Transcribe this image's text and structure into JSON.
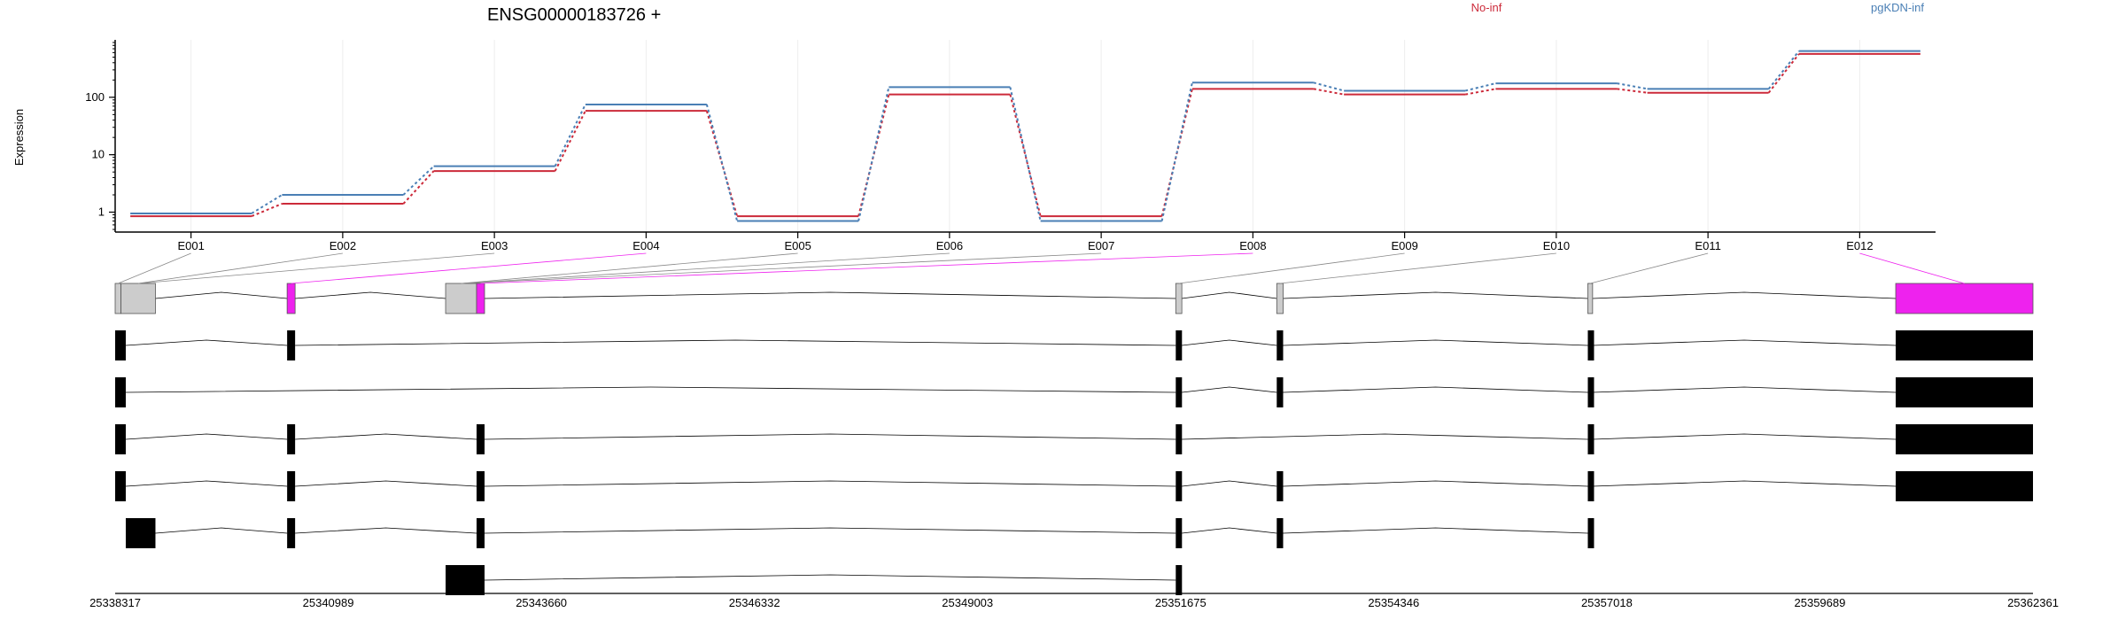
{
  "chart_data": {
    "type": "line",
    "title": "ENSG00000183726 +",
    "ylabel": "Expression",
    "yscale": "log",
    "ylim": [
      0.45,
      1000
    ],
    "y_ticks": [
      1,
      10,
      100
    ],
    "y_tick_labels": [
      "1",
      "10",
      "100"
    ],
    "grid": true,
    "legend_placement": "top",
    "categories": [
      "E001",
      "E002",
      "E003",
      "E004",
      "E005",
      "E006",
      "E007",
      "E008",
      "E009",
      "E010",
      "E011",
      "E012"
    ],
    "series": [
      {
        "name": "No-inf",
        "color": "#cc2a3a",
        "values": [
          0.85,
          1.4,
          5.2,
          58,
          0.85,
          112,
          0.85,
          140,
          112,
          140,
          120,
          570
        ]
      },
      {
        "name": "pgKDN-inf",
        "color": "#4a7fb5",
        "values": [
          0.95,
          2.0,
          6.3,
          75,
          0.7,
          150,
          0.7,
          180,
          130,
          175,
          140,
          640
        ]
      }
    ],
    "gene_model": {
      "coord_min": 25338317,
      "coord_max": 25362361,
      "coordinate_labels": [
        "25338317",
        "25340989",
        "25343660",
        "25346332",
        "25349003",
        "25351675",
        "25354346",
        "25357018",
        "25359689",
        "25362361"
      ],
      "highlight_color": "#ee22ee",
      "exon_color": "#cccccc",
      "exons": [
        {
          "id": "E001",
          "start": 25338317,
          "end": 25338390,
          "highlight": false
        },
        {
          "id": "E002",
          "start": 25338390,
          "end": 25338822,
          "highlight": false
        },
        {
          "id": "E003",
          "start": 25340473,
          "end": 25340573,
          "highlight": true
        },
        {
          "id": "E004",
          "start": 25342460,
          "end": 25342848,
          "highlight": false
        },
        {
          "id": "E005",
          "start": 25342848,
          "end": 25342948,
          "highlight": true
        },
        {
          "id": "E006",
          "start": 25351614,
          "end": 25351690,
          "highlight": false
        },
        {
          "id": "E007",
          "start": 25352880,
          "end": 25352960,
          "highlight": false
        },
        {
          "id": "E008",
          "start": 25356780,
          "end": 25356840,
          "highlight": false
        },
        {
          "id": "E009",
          "start": 25360640,
          "end": 25362361,
          "highlight": true
        }
      ],
      "exon_bin_map": [
        {
          "bin": "E001",
          "exon": "E001"
        },
        {
          "bin": "E002",
          "exon": "E002"
        },
        {
          "bin": "E003",
          "exon": "E002"
        },
        {
          "bin": "E004",
          "exon": "E003"
        },
        {
          "bin": "E005",
          "exon": "E004"
        },
        {
          "bin": "E006",
          "exon": "E004"
        },
        {
          "bin": "E007",
          "exon": "E004"
        },
        {
          "bin": "E008",
          "exon": "E005"
        },
        {
          "bin": "E009",
          "exon": "E006"
        },
        {
          "bin": "E010",
          "exon": "E007"
        },
        {
          "bin": "E011",
          "exon": "E008"
        },
        {
          "bin": "E012",
          "exon": "E009"
        }
      ],
      "transcripts": [
        {
          "exons": [
            [
              25338317,
              25338450
            ],
            [
              25340473,
              25340573
            ],
            [
              25351614,
              25351690
            ],
            [
              25352880,
              25352960
            ],
            [
              25356780,
              25356840
            ],
            [
              25360640,
              25362361
            ]
          ]
        },
        {
          "exons": [
            [
              25338317,
              25338450
            ],
            [
              25351614,
              25351690
            ],
            [
              25352880,
              25352960
            ],
            [
              25356780,
              25356840
            ],
            [
              25360640,
              25362361
            ]
          ]
        },
        {
          "exons": [
            [
              25338317,
              25338450
            ],
            [
              25340473,
              25340573
            ],
            [
              25342848,
              25342948
            ],
            [
              25351614,
              25351690
            ],
            [
              25356780,
              25356840
            ],
            [
              25360640,
              25362361
            ]
          ]
        },
        {
          "exons": [
            [
              25338317,
              25338450
            ],
            [
              25340473,
              25340573
            ],
            [
              25342848,
              25342948
            ],
            [
              25351614,
              25351690
            ],
            [
              25352880,
              25352960
            ],
            [
              25356780,
              25356840
            ],
            [
              25360640,
              25362361
            ]
          ]
        },
        {
          "exons": [
            [
              25338450,
              25338822
            ],
            [
              25340473,
              25340573
            ],
            [
              25342848,
              25342948
            ],
            [
              25351614,
              25351690
            ],
            [
              25352880,
              25352960
            ],
            [
              25356780,
              25356840
            ]
          ]
        },
        {
          "exons": [
            [
              25342460,
              25342948
            ],
            [
              25351614,
              25351690
            ]
          ]
        }
      ]
    }
  }
}
